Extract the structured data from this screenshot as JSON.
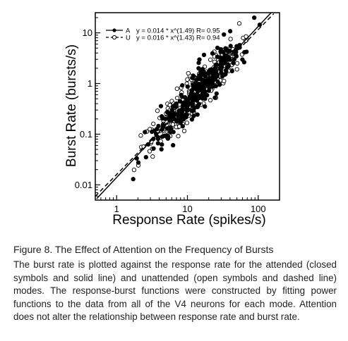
{
  "chart_data": {
    "type": "scatter",
    "xlabel": "Response Rate (spikes/s)",
    "ylabel": "Burst Rate (bursts/s)",
    "x_scale": "log",
    "y_scale": "log",
    "xlim": [
      0.5,
      200
    ],
    "ylim": [
      0.005,
      25
    ],
    "x_ticks": [
      1,
      10,
      100
    ],
    "x_tick_labels": [
      "1",
      "10",
      "100"
    ],
    "y_ticks": [
      0.01,
      0.1,
      1,
      10
    ],
    "y_tick_labels": [
      "0.01",
      "0.1",
      "1",
      "10"
    ],
    "legend_position": "top-left",
    "grid": false,
    "series": [
      {
        "name": "A",
        "marker": "filled-circle",
        "line": "solid",
        "fit_label": "y = 0.014 * x^(1.49) R= 0.95",
        "fit": {
          "a": 0.014,
          "b": 1.49
        }
      },
      {
        "name": "U",
        "marker": "open-circle",
        "line": "dashed",
        "fit_label": "y = 0.016 * x^(1.43) R= 0.94",
        "fit": {
          "a": 0.016,
          "b": 1.43
        }
      }
    ],
    "point_generation": {
      "count_per_series": 300,
      "x_log_range": [
        0.15,
        2.1
      ],
      "log_scatter_sigma": 0.2,
      "filled_seed": 11,
      "open_seed": 29
    }
  },
  "caption": {
    "title": "Figure 8.  The Effect of Attention on the Frequency of Bursts",
    "body": "The burst rate is plotted against the response rate for the attended (closed symbols and solid line) and unattended (open symbols and dashed line) modes. The response-burst functions were constructed by fitting power functions to the data from all of the V4 neurons for each mode. Attention does not alter the relationship between response rate and burst rate."
  },
  "colors": {
    "ink": "#000000",
    "background": "#ffffff",
    "caption_text": "#1f1f1f"
  }
}
